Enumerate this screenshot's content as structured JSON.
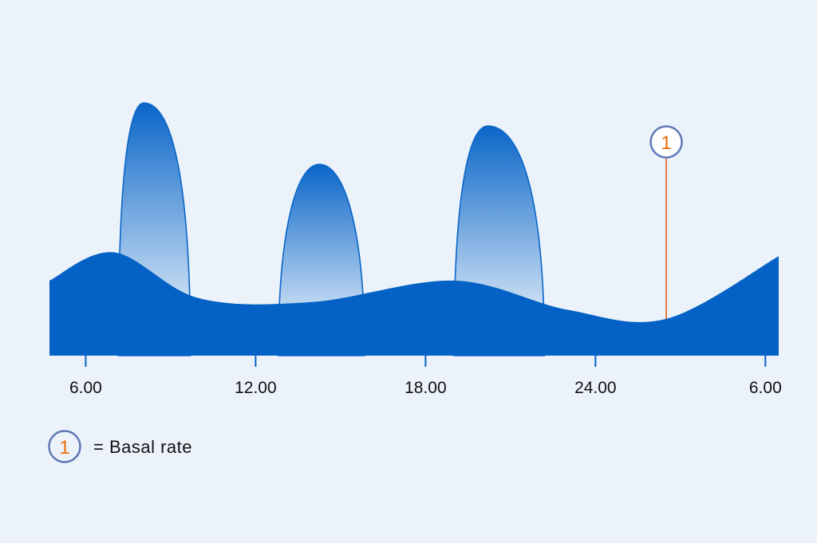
{
  "colors": {
    "background": "#ebf2fa",
    "basal_fill": "#0461c5",
    "bolus_top": "#0a66c8",
    "bolus_bottom": "#ffffff",
    "marker_line": "#e0621c",
    "marker_ring": "#5f78b6",
    "marker_number": "#e8700a"
  },
  "chart_data": {
    "type": "area",
    "x_ticks": [
      "6.00",
      "12.00",
      "18.00",
      "24.00",
      "6.00"
    ],
    "x_tick_hours": [
      6,
      12,
      18,
      24,
      30
    ],
    "xlim": [
      4.72,
      30.47
    ],
    "y_axis_visible": false,
    "grid": false,
    "series": [
      {
        "kind": "basal",
        "shape": "smooth",
        "hours": [
          4.72,
          7.0,
          10.0,
          14.0,
          19.0,
          23.0,
          26.5,
          30.47
        ],
        "levels": [
          0.98,
          1.35,
          0.75,
          0.7,
          0.98,
          0.6,
          0.48,
          1.3
        ]
      },
      {
        "kind": "bolus",
        "shape": "peaks",
        "peaks": [
          {
            "start": 7.15,
            "peak": 8.05,
            "end": 9.7,
            "level": 3.3
          },
          {
            "start": 12.8,
            "peak": 14.25,
            "end": 15.85,
            "level": 2.5
          },
          {
            "start": 19.0,
            "peak": 20.2,
            "end": 22.2,
            "level": 3.0
          }
        ]
      }
    ],
    "marker": {
      "label": "1",
      "hour": 26.5
    },
    "legend": {
      "symbol": "1",
      "text": "= Basal rate",
      "position": "bottom-left"
    }
  }
}
